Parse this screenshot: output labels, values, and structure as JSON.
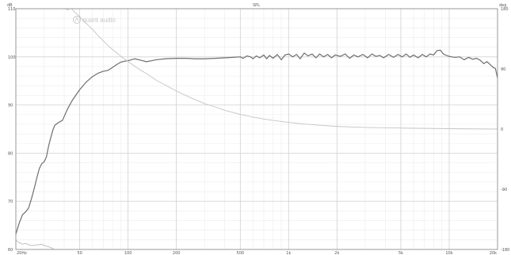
{
  "chart_data": {
    "type": "line",
    "x_scale": "log",
    "xlim": [
      20,
      20000
    ],
    "ylim": [
      60,
      110
    ],
    "y2lim": [
      -180,
      180
    ],
    "grid": true,
    "left_unit": "dB",
    "top_unit": "SPL",
    "right_unit": "deg",
    "watermark": "quant audio",
    "x_ticks": [
      {
        "value": 20,
        "label": "20Hz"
      },
      {
        "value": 50,
        "label": "50"
      },
      {
        "value": 100,
        "label": "100"
      },
      {
        "value": 200,
        "label": "200"
      },
      {
        "value": 500,
        "label": "500"
      },
      {
        "value": 1000,
        "label": "1k"
      },
      {
        "value": 2000,
        "label": "2k"
      },
      {
        "value": 5000,
        "label": "5k"
      },
      {
        "value": 10000,
        "label": "10k"
      },
      {
        "value": 20000,
        "label": "20k"
      }
    ],
    "y_ticks": [
      {
        "value": 110,
        "label": "110"
      },
      {
        "value": 100,
        "label": "100"
      },
      {
        "value": 90,
        "label": "90"
      },
      {
        "value": 80,
        "label": "80"
      },
      {
        "value": 70,
        "label": "70"
      },
      {
        "value": 60,
        "label": "60"
      }
    ],
    "y2_ticks": [
      {
        "value": 180,
        "label": "180"
      },
      {
        "value": 90,
        "label": "90"
      },
      {
        "value": 0,
        "label": "0"
      },
      {
        "value": -90,
        "label": "-90"
      },
      {
        "value": -180,
        "label": "-180"
      }
    ],
    "series": [
      {
        "axis": "left",
        "color": "#6e6e6e",
        "points": [
          [
            20,
            63.2
          ],
          [
            21,
            65.5
          ],
          [
            22,
            67.2
          ],
          [
            23,
            67.8
          ],
          [
            24,
            68.6
          ],
          [
            25,
            70.5
          ],
          [
            26,
            72.6
          ],
          [
            27,
            74.8
          ],
          [
            28,
            76.8
          ],
          [
            29,
            77.8
          ],
          [
            30,
            78.2
          ],
          [
            31,
            79.2
          ],
          [
            32,
            81.5
          ],
          [
            33,
            83.2
          ],
          [
            34,
            84.8
          ],
          [
            35,
            85.8
          ],
          [
            37,
            86.4
          ],
          [
            39,
            86.8
          ],
          [
            42,
            89.2
          ],
          [
            45,
            91.0
          ],
          [
            50,
            93.2
          ],
          [
            55,
            94.8
          ],
          [
            60,
            95.9
          ],
          [
            65,
            96.6
          ],
          [
            70,
            97.0
          ],
          [
            75,
            97.2
          ],
          [
            80,
            97.8
          ],
          [
            85,
            98.4
          ],
          [
            90,
            98.9
          ],
          [
            95,
            99.1
          ],
          [
            100,
            99.2
          ],
          [
            110,
            99.6
          ],
          [
            120,
            99.3
          ],
          [
            130,
            99.0
          ],
          [
            140,
            99.2
          ],
          [
            150,
            99.4
          ],
          [
            170,
            99.6
          ],
          [
            200,
            99.7
          ],
          [
            230,
            99.7
          ],
          [
            260,
            99.6
          ],
          [
            300,
            99.6
          ],
          [
            350,
            99.7
          ],
          [
            400,
            99.8
          ],
          [
            450,
            99.9
          ],
          [
            500,
            100.0
          ],
          [
            520,
            99.7
          ],
          [
            550,
            100.2
          ],
          [
            580,
            100.0
          ],
          [
            600,
            99.6
          ],
          [
            630,
            100.2
          ],
          [
            660,
            99.8
          ],
          [
            700,
            100.4
          ],
          [
            730,
            99.6
          ],
          [
            760,
            100.3
          ],
          [
            800,
            99.7
          ],
          [
            850,
            100.5
          ],
          [
            900,
            99.4
          ],
          [
            950,
            100.4
          ],
          [
            1000,
            100.6
          ],
          [
            1060,
            100.0
          ],
          [
            1120,
            100.5
          ],
          [
            1180,
            99.6
          ],
          [
            1250,
            100.8
          ],
          [
            1320,
            100.2
          ],
          [
            1400,
            100.6
          ],
          [
            1480,
            99.8
          ],
          [
            1560,
            100.6
          ],
          [
            1650,
            100.0
          ],
          [
            1750,
            100.5
          ],
          [
            1850,
            99.8
          ],
          [
            1950,
            100.4
          ],
          [
            2100,
            100.1
          ],
          [
            2250,
            100.6
          ],
          [
            2400,
            99.7
          ],
          [
            2550,
            100.4
          ],
          [
            2700,
            100.0
          ],
          [
            2900,
            100.5
          ],
          [
            3100,
            99.8
          ],
          [
            3300,
            100.6
          ],
          [
            3500,
            100.1
          ],
          [
            3700,
            100.3
          ],
          [
            3900,
            99.8
          ],
          [
            4200,
            100.5
          ],
          [
            4500,
            99.9
          ],
          [
            4800,
            100.5
          ],
          [
            5100,
            100.0
          ],
          [
            5400,
            100.6
          ],
          [
            5700,
            99.9
          ],
          [
            6000,
            100.4
          ],
          [
            6400,
            99.8
          ],
          [
            6800,
            100.5
          ],
          [
            7200,
            100.0
          ],
          [
            7600,
            100.6
          ],
          [
            8000,
            100.4
          ],
          [
            8400,
            101.3
          ],
          [
            8800,
            101.4
          ],
          [
            9200,
            100.6
          ],
          [
            9600,
            100.3
          ],
          [
            10000,
            100.1
          ],
          [
            10800,
            99.9
          ],
          [
            11600,
            100.0
          ],
          [
            12400,
            99.4
          ],
          [
            13200,
            99.9
          ],
          [
            14000,
            99.5
          ],
          [
            14800,
            99.7
          ],
          [
            15600,
            99.3
          ],
          [
            16400,
            98.6
          ],
          [
            17200,
            99.0
          ],
          [
            18000,
            98.4
          ],
          [
            18800,
            97.8
          ],
          [
            19400,
            97.6
          ],
          [
            20000,
            95.6
          ]
        ]
      },
      {
        "axis": "right",
        "color": "#b8b8b8",
        "points": [
          [
            20,
            -166
          ],
          [
            21,
            -170
          ],
          [
            22,
            -172
          ],
          [
            23,
            -171
          ],
          [
            24,
            -173
          ],
          [
            25,
            -174
          ],
          [
            26,
            -174
          ],
          [
            27,
            -173
          ],
          [
            28,
            -173
          ],
          [
            29,
            -172
          ],
          [
            30,
            -174
          ],
          [
            31,
            -175
          ],
          [
            32,
            -176
          ],
          [
            33,
            -177
          ],
          [
            34,
            -179
          ],
          [
            35,
            -180
          ]
        ]
      },
      {
        "axis": "right",
        "color": "#c4c4c4",
        "points": [
          [
            40,
            180
          ],
          [
            41,
            180
          ],
          [
            42,
            178
          ],
          [
            43,
            180
          ],
          [
            44,
            180
          ],
          [
            45,
            179
          ],
          [
            46,
            176
          ],
          [
            48,
            172
          ],
          [
            50,
            168
          ],
          [
            55,
            158
          ],
          [
            60,
            149
          ],
          [
            65,
            140
          ],
          [
            70,
            132
          ],
          [
            75,
            125
          ],
          [
            80,
            119
          ],
          [
            85,
            114
          ],
          [
            90,
            109
          ],
          [
            100,
            101
          ],
          [
            110,
            94
          ],
          [
            120,
            88
          ],
          [
            130,
            83
          ],
          [
            150,
            73
          ],
          [
            170,
            66
          ],
          [
            200,
            57
          ],
          [
            250,
            46
          ],
          [
            300,
            38
          ],
          [
            350,
            33
          ],
          [
            400,
            28
          ],
          [
            500,
            22
          ],
          [
            600,
            18
          ],
          [
            700,
            15
          ],
          [
            800,
            13
          ],
          [
            1000,
            10
          ],
          [
            1200,
            8
          ],
          [
            1500,
            6
          ],
          [
            2000,
            4
          ],
          [
            3000,
            2.5
          ],
          [
            5000,
            1.5
          ],
          [
            10000,
            0.6
          ],
          [
            20000,
            0
          ]
        ]
      }
    ]
  }
}
